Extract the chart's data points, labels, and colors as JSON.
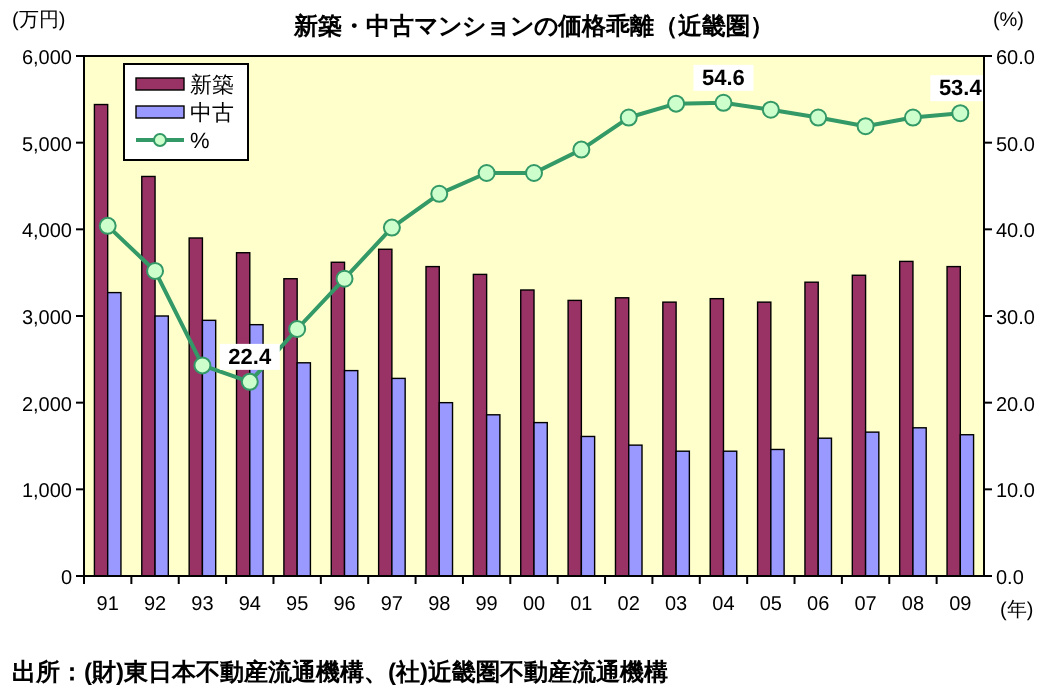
{
  "chart_data": {
    "type": "bar",
    "title": "新築・中古マンションの価格乖離（近畿圏）",
    "ylabel": "(万円)",
    "y2label": "(%)",
    "xlabel": "(年)",
    "annotations": [
      "出所：(財)東日本不動産流通機構、(社)近畿圏不動産流通機構"
    ],
    "categories": [
      "91",
      "92",
      "93",
      "94",
      "95",
      "96",
      "97",
      "98",
      "99",
      "00",
      "01",
      "02",
      "03",
      "04",
      "05",
      "06",
      "07",
      "08",
      "09"
    ],
    "series": [
      {
        "name": "新築",
        "color": "#993366",
        "values": [
          5440,
          4610,
          3900,
          3730,
          3430,
          3620,
          3770,
          3570,
          3480,
          3300,
          3180,
          3210,
          3160,
          3200,
          3160,
          3390,
          3470,
          3630,
          3570
        ]
      },
      {
        "name": "中古",
        "color": "#9999ff",
        "values": [
          3270,
          3000,
          2950,
          2900,
          2460,
          2370,
          2280,
          2000,
          1860,
          1770,
          1610,
          1510,
          1440,
          1440,
          1460,
          1590,
          1660,
          1710,
          1630
        ]
      },
      {
        "name": "%",
        "type": "line",
        "axis": "y2",
        "color": "#339966",
        "values": [
          40.4,
          35.2,
          24.3,
          22.4,
          28.5,
          34.3,
          40.2,
          44.1,
          46.5,
          46.5,
          49.2,
          52.9,
          54.5,
          54.6,
          53.8,
          52.9,
          51.9,
          52.9,
          53.4
        ],
        "value_labels": [
          null,
          null,
          null,
          "22.4",
          null,
          null,
          null,
          null,
          null,
          null,
          null,
          null,
          null,
          "54.6",
          null,
          null,
          null,
          null,
          "53.4"
        ]
      }
    ],
    "ylim": [
      0,
      6000
    ],
    "yticks": [
      0,
      {
        "value": 1000,
        "label": "1,000"
      },
      {
        "value": 2000,
        "label": "2,000"
      },
      {
        "value": 3000,
        "label": "3,000"
      },
      {
        "value": 4000,
        "label": "4,000"
      },
      {
        "value": 5000,
        "label": "5,000"
      },
      {
        "value": 6000,
        "label": "6,000"
      }
    ],
    "y2lim": [
      0,
      60
    ],
    "y2ticks": [
      {
        "value": 0,
        "label": "0.0"
      },
      {
        "value": 10,
        "label": "10.0"
      },
      {
        "value": 20,
        "label": "20.0"
      },
      {
        "value": 30,
        "label": "30.0"
      },
      {
        "value": 40,
        "label": "40.0"
      },
      {
        "value": 50,
        "label": "50.0"
      },
      {
        "value": 60,
        "label": "60.0"
      }
    ],
    "marker": "circle",
    "legend": "top left"
  }
}
